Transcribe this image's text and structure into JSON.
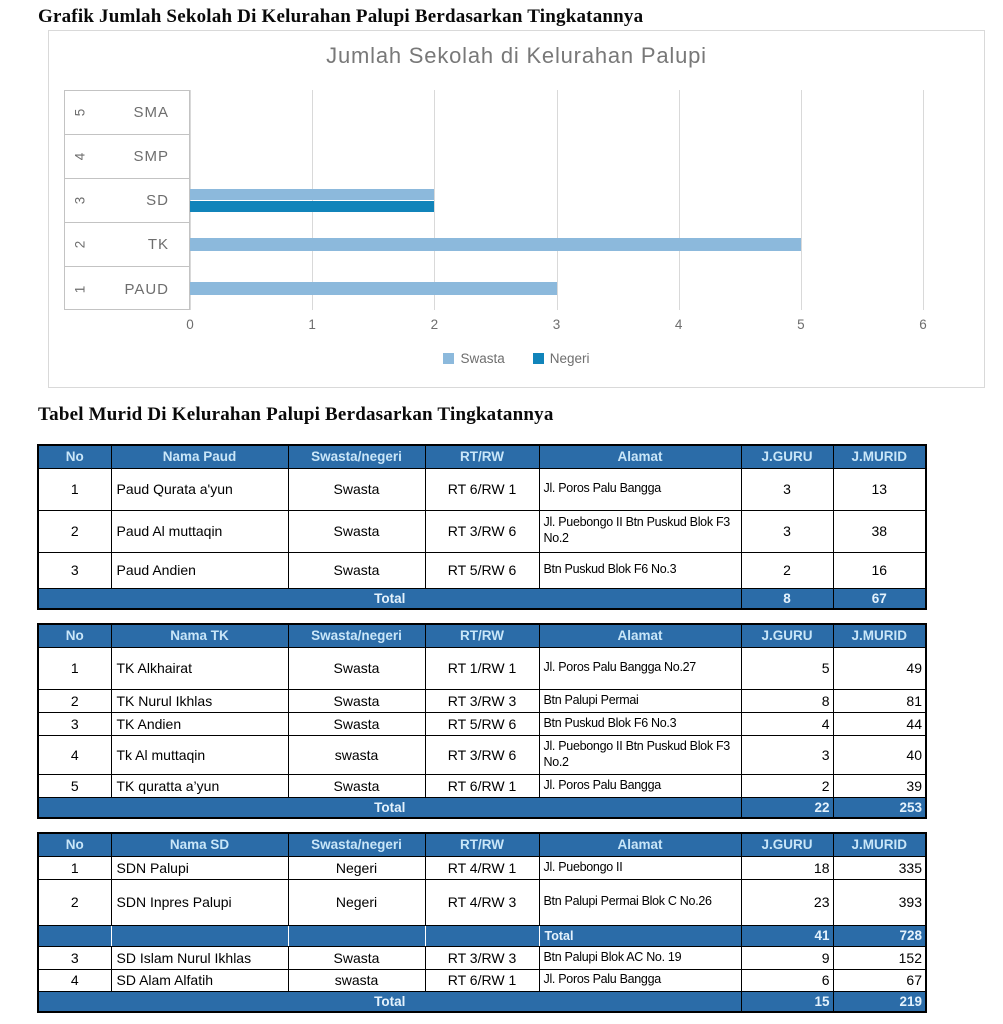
{
  "doc": {
    "title_grafik": "Grafik Jumlah Sekolah Di Kelurahan Palupi Berdasarkan Tingkatannya",
    "title_tabel": "Tabel Murid Di Kelurahan Palupi Berdasarkan Tingkatannya"
  },
  "colors": {
    "swasta": "#8cb9dc",
    "negeri": "#1184ba",
    "table_header_bg": "#2b6ca8",
    "table_header_text": "#c9e6f8",
    "total_bg": "#2b6ca8",
    "total_text": "#e4f2fc",
    "chart_text": "#6e6e6e",
    "gridline": "#d9d9d9"
  },
  "chart_data": {
    "type": "bar",
    "orientation": "horizontal",
    "title": "Jumlah Sekolah di Kelurahan Palupi",
    "categories": [
      "PAUD",
      "TK",
      "SD",
      "SMP",
      "SMA"
    ],
    "category_indices": [
      "1",
      "2",
      "3",
      "4",
      "5"
    ],
    "series": [
      {
        "name": "Swasta",
        "color": "#8cb9dc",
        "values": [
          3,
          5,
          2,
          0,
          0
        ]
      },
      {
        "name": "Negeri",
        "color": "#1184ba",
        "values": [
          0,
          0,
          2,
          0,
          0
        ]
      }
    ],
    "xlim": [
      0,
      6
    ],
    "xticks": [
      "0",
      "1",
      "2",
      "3",
      "4",
      "5",
      "6"
    ],
    "grid": true,
    "legend_position": "bottom"
  },
  "tables": [
    {
      "name": "paud",
      "headers": [
        "No",
        "Nama Paud",
        "Swasta/negeri",
        "RT/RW",
        "Alamat",
        "J.GURU",
        "J.MURID"
      ],
      "rows": [
        [
          "1",
          "Paud Qurata a'yun",
          "Swasta",
          "RT 6/RW 1",
          "Jl. Poros Palu Bangga",
          "3",
          "13"
        ],
        [
          "2",
          "Paud Al muttaqin",
          "Swasta",
          "RT 3/RW 6",
          "Jl. Puebongo II Btn Puskud Blok F3 No.2",
          "3",
          "38"
        ],
        [
          "3",
          "Paud Andien",
          "Swasta",
          "RT 5/RW 6",
          "Btn Puskud Blok F6 No.3",
          "2",
          "16"
        ]
      ],
      "total": {
        "label": "Total",
        "guru": "8",
        "murid": "67"
      }
    },
    {
      "name": "tk",
      "headers": [
        "No",
        "Nama TK",
        "Swasta/negeri",
        "RT/RW",
        "Alamat",
        "J.GURU",
        "J.MURID"
      ],
      "rows": [
        [
          "1",
          "TK Alkhairat",
          "Swasta",
          "RT 1/RW 1",
          "Jl. Poros Palu Bangga No.27",
          "5",
          "49"
        ],
        [
          "2",
          "TK Nurul Ikhlas",
          "Swasta",
          "RT 3/RW 3",
          "Btn Palupi Permai",
          "8",
          "81"
        ],
        [
          "3",
          "TK Andien",
          "Swasta",
          "RT 5/RW 6",
          "Btn Puskud Blok F6 No.3",
          "4",
          "44"
        ],
        [
          "4",
          "Tk Al muttaqin",
          "swasta",
          "RT 3/RW 6",
          "Jl. Puebongo II Btn Puskud Blok F3 No.2",
          "3",
          "40"
        ],
        [
          "5",
          "TK quratta a’yun",
          "Swasta",
          "RT 6/RW 1",
          "Jl. Poros Palu Bangga",
          "2",
          "39"
        ]
      ],
      "total": {
        "label": "Total",
        "guru": "22",
        "murid": "253"
      }
    },
    {
      "name": "sd",
      "headers": [
        "No",
        "Nama SD",
        "Swasta/negeri",
        "RT/RW",
        "Alamat",
        "J.GURU",
        "J.MURID"
      ],
      "rows": [
        [
          "1",
          "SDN Palupi",
          "Negeri",
          "RT 4/RW 1",
          "Jl. Puebongo II",
          "18",
          "335"
        ],
        [
          "2",
          "SDN Inpres Palupi",
          "Negeri",
          "RT 4/RW 3",
          "Btn Palupi Permai Blok C No.26",
          "23",
          "393"
        ]
      ],
      "subtotal": {
        "label": "Total",
        "guru": "41",
        "murid": "728"
      },
      "rows2": [
        [
          "3",
          "SD Islam Nurul Ikhlas",
          "Swasta",
          "RT 3/RW 3",
          "Btn Palupi Blok AC No. 19",
          "9",
          "152"
        ],
        [
          "4",
          "SD Alam Alfatih",
          "swasta",
          "RT 6/RW 1",
          "Jl. Poros Palu Bangga",
          "6",
          "67"
        ]
      ],
      "total": {
        "label": "Total",
        "guru": "15",
        "murid": "219"
      }
    }
  ]
}
